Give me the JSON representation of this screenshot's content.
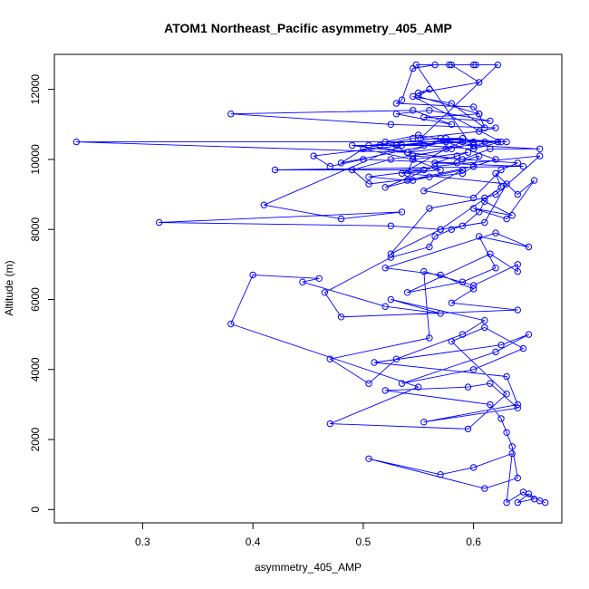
{
  "chart_data": {
    "type": "scatter",
    "title": "ATOM1 Northeast_Pacific asymmetry_405_AMP",
    "xlabel": "asymmetry_405_AMP",
    "ylabel": "Altitude (m)",
    "xlim": [
      0.22,
      0.68
    ],
    "ylim": [
      -380,
      13000
    ],
    "x_ticks": [
      0.3,
      0.4,
      0.5,
      0.6
    ],
    "x_tick_labels": [
      "0.3",
      "0.4",
      "0.5",
      "0.6"
    ],
    "y_ticks": [
      0,
      2000,
      4000,
      6000,
      8000,
      10000,
      12000
    ],
    "y_tick_labels": [
      "0",
      "2000",
      "4000",
      "6000",
      "8000",
      "10000",
      "12000"
    ],
    "grid": false,
    "legend": "none",
    "series": [
      {
        "color": "#0000ff",
        "mode": "lines+markers",
        "x": [
          0.665,
          0.66,
          0.65,
          0.64,
          0.655,
          0.645,
          0.63,
          0.635,
          0.6,
          0.57,
          0.505,
          0.61,
          0.64,
          0.635,
          0.63,
          0.625,
          0.615,
          0.52,
          0.595,
          0.615,
          0.64,
          0.555,
          0.64,
          0.63,
          0.51,
          0.625,
          0.65,
          0.62,
          0.535,
          0.6,
          0.645,
          0.61,
          0.58,
          0.63,
          0.595,
          0.47,
          0.55,
          0.38,
          0.4,
          0.46,
          0.445,
          0.52,
          0.57,
          0.525,
          0.61,
          0.59,
          0.53,
          0.505,
          0.47,
          0.56,
          0.555,
          0.6,
          0.64,
          0.64,
          0.615,
          0.54,
          0.59,
          0.62,
          0.605,
          0.65,
          0.62,
          0.52,
          0.57,
          0.6,
          0.58,
          0.64,
          0.48,
          0.465,
          0.525,
          0.56,
          0.565,
          0.58,
          0.59,
          0.605,
          0.61,
          0.635,
          0.6,
          0.63,
          0.655,
          0.64,
          0.62,
          0.625,
          0.57,
          0.525,
          0.56,
          0.61,
          0.62,
          0.66,
          0.565,
          0.52,
          0.545,
          0.59,
          0.555,
          0.6,
          0.625,
          0.64,
          0.545,
          0.58,
          0.525,
          0.49,
          0.505,
          0.56,
          0.59,
          0.6,
          0.605,
          0.585,
          0.5,
          0.47,
          0.455,
          0.535,
          0.41,
          0.48,
          0.535,
          0.315,
          0.525,
          0.57,
          0.61,
          0.63,
          0.54,
          0.545,
          0.5,
          0.48,
          0.575,
          0.62,
          0.6,
          0.54,
          0.505,
          0.555,
          0.42,
          0.645,
          0.565,
          0.585,
          0.595,
          0.545,
          0.57,
          0.535,
          0.575,
          0.59,
          0.63,
          0.57,
          0.505,
          0.54,
          0.52,
          0.55,
          0.6,
          0.66,
          0.615,
          0.59,
          0.49,
          0.555,
          0.6,
          0.61,
          0.24,
          0.54,
          0.575,
          0.59,
          0.53,
          0.6,
          0.515,
          0.545,
          0.605,
          0.62,
          0.525,
          0.38,
          0.545,
          0.58,
          0.53,
          0.56,
          0.615,
          0.555,
          0.605,
          0.6,
          0.53,
          0.535,
          0.545,
          0.565,
          0.6,
          0.58,
          0.605,
          0.55,
          0.56,
          0.55,
          0.605,
          0.61,
          0.58,
          0.545,
          0.625,
          0.6,
          0.548,
          0.578,
          0.602,
          0.622,
          0.552,
          0.622,
          0.54
        ],
        "y": [
          200,
          250,
          450,
          200,
          300,
          500,
          200,
          1600,
          1200,
          1000,
          1450,
          600,
          900,
          1800,
          2200,
          2600,
          3000,
          3400,
          3500,
          3600,
          2900,
          2500,
          3000,
          3800,
          4200,
          4700,
          5000,
          4500,
          3600,
          4000,
          4600,
          5200,
          4800,
          3300,
          2300,
          2450,
          3500,
          5300,
          6700,
          6600,
          6500,
          5800,
          5600,
          6000,
          5400,
          5000,
          4300,
          3600,
          4300,
          4900,
          6800,
          6400,
          7000,
          6800,
          7300,
          6200,
          6500,
          6900,
          7800,
          7500,
          7900,
          6900,
          6700,
          6300,
          5900,
          5700,
          5500,
          6200,
          7200,
          7500,
          7800,
          8000,
          8100,
          8500,
          8800,
          8400,
          8600,
          8300,
          9400,
          9000,
          9600,
          9200,
          8000,
          7300,
          8600,
          8900,
          9000,
          10100,
          9800,
          9200,
          9400,
          9700,
          9100,
          8900,
          9700,
          9900,
          10100,
          10300,
          10000,
          9700,
          9300,
          9500,
          9600,
          9800,
          10100,
          9900,
          10000,
          9800,
          10100,
          10400,
          8700,
          8300,
          8500,
          8200,
          8100,
          8000,
          8200,
          9300,
          9600,
          10000,
          10300,
          9900,
          10500,
          10000,
          9800,
          9400,
          9500,
          9700,
          9700,
          9800,
          9900,
          10100,
          10200,
          10000,
          9700,
          9600,
          10300,
          10500,
          10500,
          10600,
          10400,
          10200,
          10500,
          10700,
          10400,
          10300,
          10300,
          10000,
          10400,
          10400,
          10300,
          10500,
          10500,
          10200,
          10600,
          10600,
          10400,
          10500,
          10400,
          10600,
          10800,
          10900,
          11000,
          11300,
          11400,
          11000,
          11300,
          11400,
          11100,
          11200,
          11300,
          11500,
          11600,
          11700,
          12600,
          12700,
          12700,
          12700,
          12200,
          11900,
          12000,
          11800,
          11300,
          10900,
          11600,
          11800,
          10500,
          10300,
          12700,
          12700,
          12700,
          12700,
          10600,
          10500,
          10200
        ]
      }
    ]
  }
}
